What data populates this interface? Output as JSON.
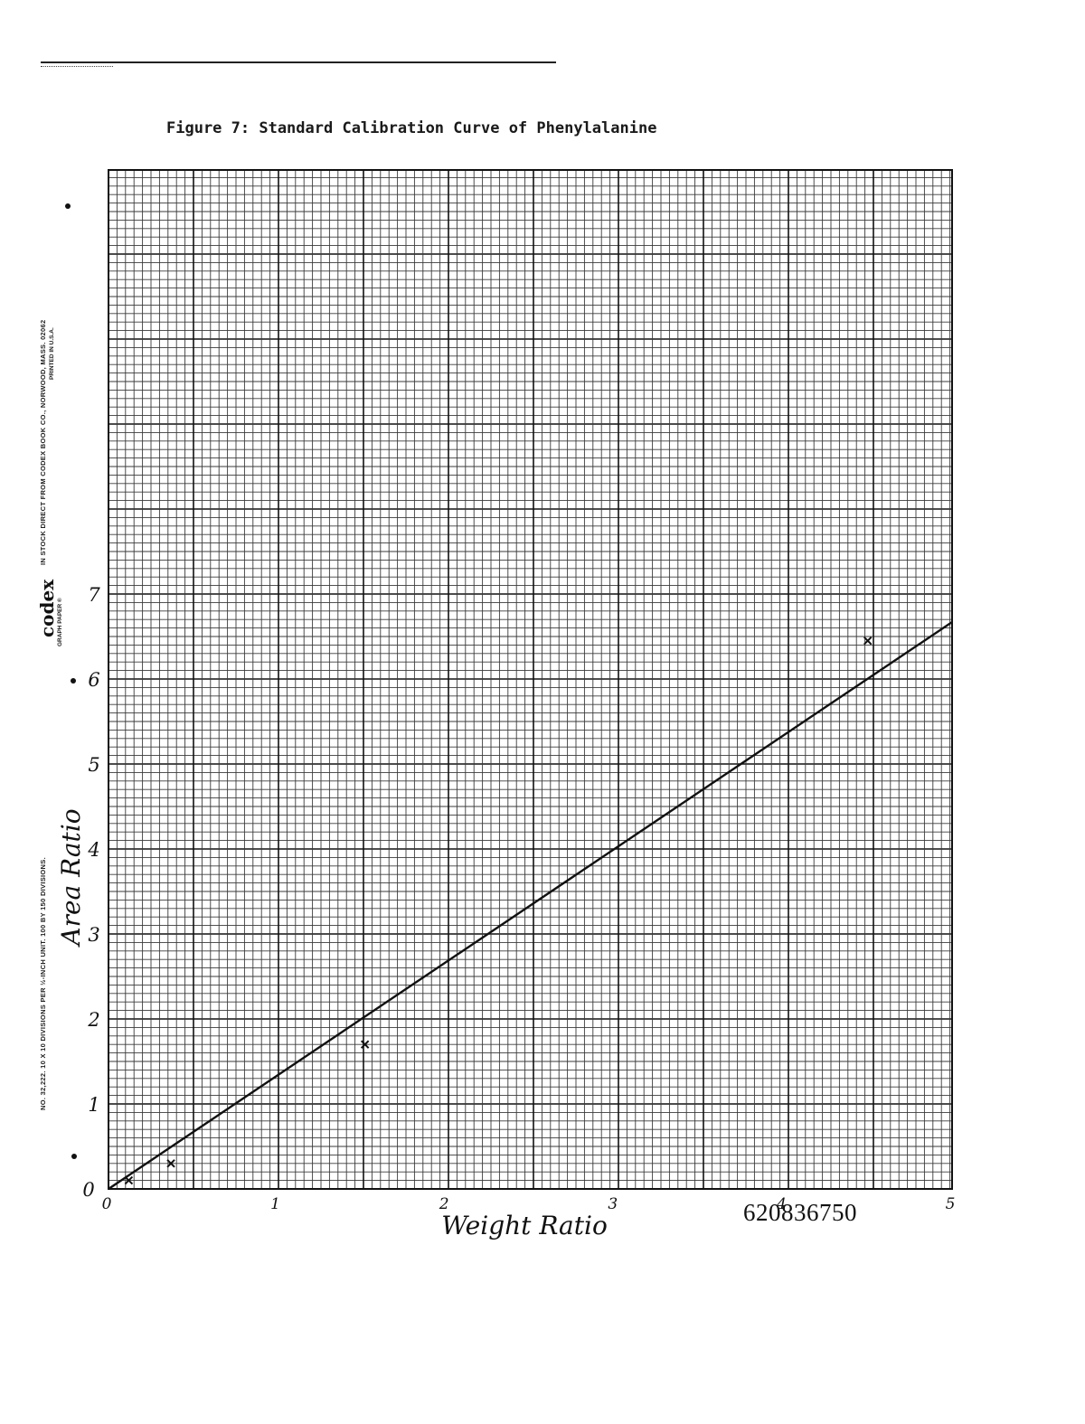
{
  "header": {
    "title": "Figure 7:  Standard Calibration Curve of Phenylalanine"
  },
  "graph_paper": {
    "brand": "codex",
    "brand_subtitle": "GRAPH PAPER ®",
    "stock_note": "IN STOCK DIRECT FROM CODEX BOOK CO., NORWOOD, MASS. 02062",
    "printed_in": "PRINTED IN U.S.A.",
    "spec": "NO. 32,222. 10 X 10 DIVISIONS PER ½-INCH UNIT. 100 BY 150 DIVISIONS."
  },
  "document_id": "620836750",
  "colors": {
    "ink": "#111111",
    "grid_minor": "#3a3a3a",
    "grid_major": "#111111",
    "paper": "#ffffff"
  },
  "chart_data": {
    "type": "scatter",
    "title": "Figure 7:  Standard Calibration Curve of Phenylalanine",
    "xlabel": "Weight Ratio",
    "ylabel": "Area Ratio",
    "xlim": [
      0,
      5
    ],
    "ylim": [
      0,
      7
    ],
    "x_ticks": [
      "0",
      "1",
      "2",
      "3",
      "4",
      "5"
    ],
    "y_ticks": [
      "0",
      "1",
      "2",
      "3",
      "4",
      "5",
      "6",
      "7"
    ],
    "grid": true,
    "series": [
      {
        "marker": "x",
        "points": [
          [
            0.12,
            0.1
          ],
          [
            0.37,
            0.3
          ],
          [
            1.52,
            1.7
          ],
          [
            4.5,
            6.45
          ]
        ]
      }
    ],
    "fit_line": {
      "x": [
        0,
        5
      ],
      "y": [
        0,
        6.67
      ]
    }
  }
}
